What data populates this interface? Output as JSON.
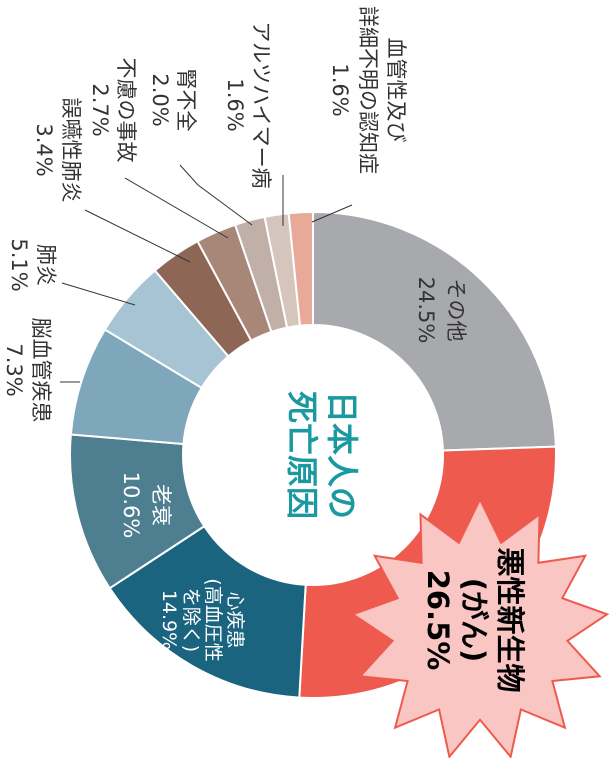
{
  "chart_data": {
    "type": "donut",
    "title": [
      "日本人の",
      "死亡原因"
    ],
    "categories": [
      [
        "その他"
      ],
      [
        "悪性新生物",
        "(がん)"
      ],
      [
        "心疾患",
        "(高血圧性",
        "を除く)"
      ],
      [
        "老衰"
      ],
      [
        "脳血管疾患"
      ],
      [
        "肺炎"
      ],
      [
        "誤嚥性肺炎"
      ],
      [
        "不慮の事故"
      ],
      [
        "腎不全"
      ],
      [
        "アルツハイマー病"
      ],
      [
        "血管性及び",
        "詳細不明の認知症"
      ]
    ],
    "values": [
      24.5,
      26.5,
      14.9,
      10.6,
      7.3,
      5.1,
      3.4,
      2.7,
      2.0,
      1.6,
      1.6
    ],
    "value_labels": [
      "24.5%",
      "26.5%",
      "14.9%",
      "10.6%",
      "7.3%",
      "5.1%",
      "3.4%",
      "2.7%",
      "2.0%",
      "1.6%",
      "1.6%"
    ],
    "colors": [
      "#a7a9ac",
      "#ef5a4f",
      "#1a6480",
      "#4d7f91",
      "#7fa7bb",
      "#a6c4d3",
      "#8e6656",
      "#a88678",
      "#c1b0a8",
      "#d5c5bd",
      "#e8a998"
    ],
    "title_color": "#1a9aa0"
  }
}
